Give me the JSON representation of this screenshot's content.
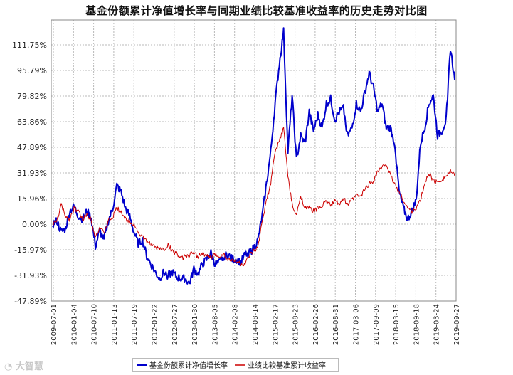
{
  "chart_data": {
    "type": "line",
    "title": "基金份额累计净值增长率与同期业绩比较基准收益率的历史走势对比图",
    "xlabel": "",
    "ylabel": "",
    "x_ticks": [
      "2009-07-01",
      "2010-01-04",
      "2010-07-10",
      "2011-01-13",
      "2011-07-19",
      "2012-01-22",
      "2012-07-27",
      "2013-01-30",
      "2013-08-05",
      "2014-02-08",
      "2014-08-14",
      "2015-02-17",
      "2015-08-23",
      "2016-02-26",
      "2016-08-31",
      "2017-03-06",
      "2017-09-09",
      "2018-03-15",
      "2018-09-18",
      "2019-03-24",
      "2019-09-27"
    ],
    "y_ticks": [
      "111.75%",
      "95.79%",
      "79.82%",
      "63.86%",
      "47.89%",
      "31.93%",
      "15.96%",
      "0.00%",
      "-15.97%",
      "-31.93%",
      "-47.89%"
    ],
    "y_tick_values": [
      111.75,
      95.79,
      79.82,
      63.86,
      47.89,
      31.93,
      15.96,
      0.0,
      -15.97,
      -31.93,
      -47.89
    ],
    "ylim": [
      -47.89,
      111.75
    ],
    "grid": true,
    "legend_position": "bottom",
    "series": [
      {
        "name": "基金份额累计净值增长率",
        "color": "#0000cc",
        "values": [
          0,
          2,
          -5,
          -3,
          8,
          11,
          5,
          3,
          8,
          4,
          -14,
          -4,
          -10,
          2,
          9,
          24,
          20,
          10,
          5,
          -5,
          -12,
          -10,
          -20,
          -25,
          -30,
          -34,
          -30,
          -32,
          -30,
          -33,
          -34,
          -34,
          -37,
          -28,
          -31,
          -25,
          -22,
          -18,
          -25,
          -24,
          -20,
          -19,
          -22,
          -22,
          -24,
          -19,
          -18,
          -15,
          -10,
          5,
          25,
          45,
          75,
          100,
          120,
          45,
          80,
          40,
          55,
          50,
          70,
          58,
          68,
          60,
          75,
          78,
          65,
          70,
          72,
          55,
          60,
          75,
          70,
          82,
          94,
          85,
          70,
          75,
          60,
          60,
          50,
          20,
          10,
          3,
          8,
          15,
          50,
          60,
          75,
          80,
          55,
          58,
          65,
          110,
          90
        ]
      },
      {
        "name": "业绩比较基准累计收益率",
        "color": "#cc0000",
        "values": [
          0,
          2,
          12,
          5,
          3,
          10,
          8,
          3,
          6,
          3,
          -8,
          -2,
          -6,
          2,
          4,
          10,
          8,
          3,
          2,
          0,
          -5,
          -8,
          -11,
          -12,
          -15,
          -15,
          -16,
          -13,
          -17,
          -18,
          -22,
          -20,
          -19,
          -18,
          -20,
          -18,
          -20,
          -21,
          -19,
          -20,
          -19,
          -22,
          -23,
          -23,
          -25,
          -25,
          -20,
          -17,
          -15,
          2,
          15,
          25,
          45,
          52,
          60,
          30,
          12,
          5,
          18,
          10,
          10,
          8,
          10,
          12,
          14,
          12,
          14,
          13,
          16,
          12,
          15,
          18,
          17,
          22,
          25,
          27,
          33,
          35,
          38,
          30,
          25,
          20,
          15,
          10,
          8,
          10,
          15,
          25,
          32,
          27,
          26,
          28,
          30,
          33,
          30
        ]
      }
    ]
  },
  "watermark": "大智慧"
}
